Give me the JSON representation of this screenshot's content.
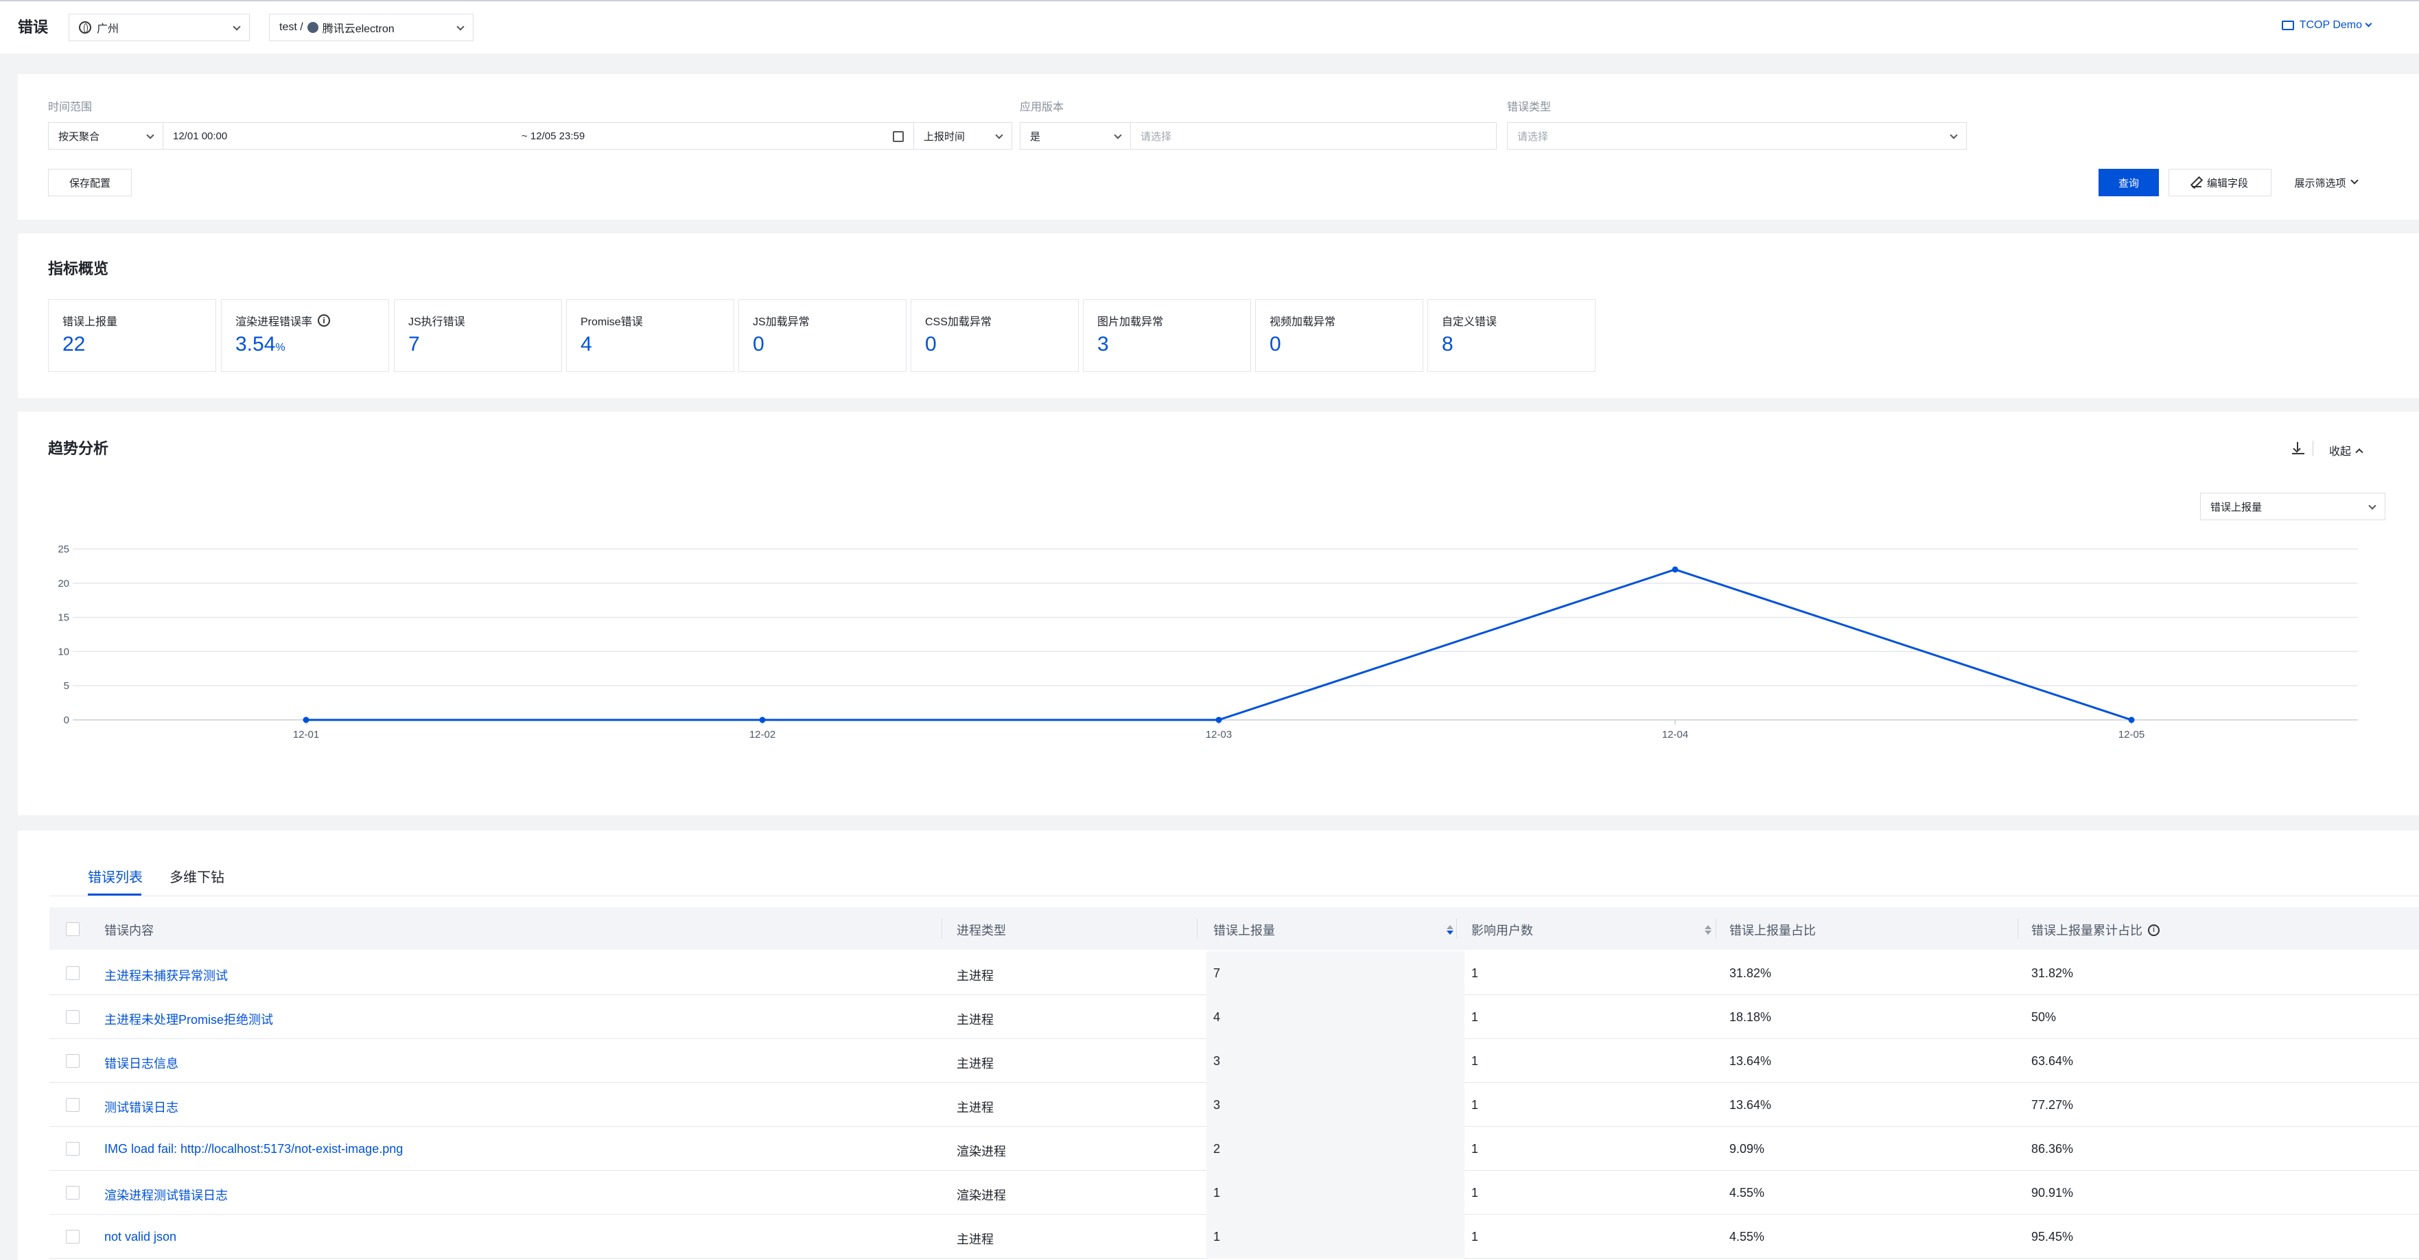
{
  "header": {
    "title": "错误",
    "region": "广州",
    "app_prefix": "test /",
    "app_name": "腾讯云electron",
    "user": "TCOP Demo"
  },
  "filters": {
    "time_range_label": "时间范围",
    "aggregation": "按天聚合",
    "start": "12/01 00:00",
    "end": "~ 12/05 23:59",
    "time_field": "上报时间",
    "app_version_label": "应用版本",
    "version_op": "是",
    "version_placeholder": "请选择",
    "error_type_label": "错误类型",
    "error_type_placeholder": "请选择",
    "save_config": "保存配置",
    "query": "查询",
    "edit_fields": "编辑字段",
    "show_filters": "展示筛选项"
  },
  "metrics": {
    "title": "指标概览",
    "items": [
      {
        "label": "错误上报量",
        "value": "22",
        "unit": ""
      },
      {
        "label": "渲染进程错误率",
        "value": "3.54",
        "unit": "%"
      },
      {
        "label": "JS执行错误",
        "value": "7",
        "unit": ""
      },
      {
        "label": "Promise错误",
        "value": "4",
        "unit": ""
      },
      {
        "label": "JS加载异常",
        "value": "0",
        "unit": ""
      },
      {
        "label": "CSS加载异常",
        "value": "0",
        "unit": ""
      },
      {
        "label": "图片加载异常",
        "value": "3",
        "unit": ""
      },
      {
        "label": "视频加载异常",
        "value": "0",
        "unit": ""
      },
      {
        "label": "自定义错误",
        "value": "8",
        "unit": ""
      }
    ]
  },
  "trend": {
    "title": "趋势分析",
    "collapse": "收起",
    "metric_select": "错误上报量"
  },
  "chart_data": {
    "type": "line",
    "categories": [
      "12-01",
      "12-02",
      "12-03",
      "12-04",
      "12-05"
    ],
    "series": [
      {
        "values": [
          0,
          0,
          0,
          22,
          0
        ]
      }
    ],
    "yticks": [
      0,
      5,
      10,
      15,
      20,
      25
    ],
    "ylim": [
      0,
      25
    ],
    "grid": true,
    "color": "#0052d9"
  },
  "table": {
    "tabs": [
      "错误列表",
      "多维下钻"
    ],
    "headers": [
      "错误内容",
      "进程类型",
      "错误上报量",
      "影响用户数",
      "错误上报量占比",
      "错误上报量累计占比"
    ],
    "rows": [
      [
        "主进程未捕获异常测试",
        "主进程",
        "7",
        "1",
        "31.82%",
        "31.82%"
      ],
      [
        "主进程未处理Promise拒绝测试",
        "主进程",
        "4",
        "1",
        "18.18%",
        "50%"
      ],
      [
        "错误日志信息",
        "主进程",
        "3",
        "1",
        "13.64%",
        "63.64%"
      ],
      [
        "测试错误日志",
        "主进程",
        "3",
        "1",
        "13.64%",
        "77.27%"
      ],
      [
        "IMG load fail: http://localhost:5173/not-exist-image.png",
        "渲染进程",
        "2",
        "1",
        "9.09%",
        "86.36%"
      ],
      [
        "渲染进程测试错误日志",
        "渲染进程",
        "1",
        "1",
        "4.55%",
        "90.91%"
      ],
      [
        "not valid json",
        "主进程",
        "1",
        "1",
        "4.55%",
        "95.45%"
      ]
    ]
  }
}
